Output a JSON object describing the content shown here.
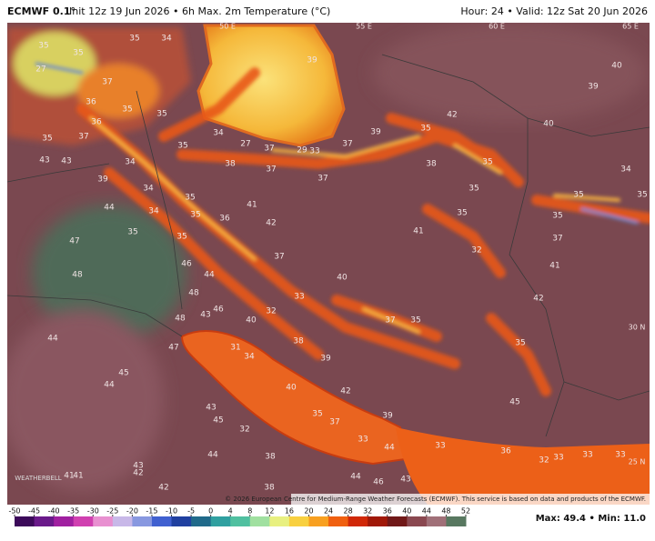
{
  "header": {
    "model": "ECMWF 0.1°",
    "title": "Init 12z 19 Jun 2026 • 6h Max. 2m Temperature (°C)",
    "valid": "Hour: 24 • Valid: 12z Sat 20 Jun 2026"
  },
  "map": {
    "grid_labels": [
      "50 E",
      "55 E",
      "60 E",
      "65 E",
      "30 N",
      "25 N"
    ],
    "temperature_labels": [
      "35",
      "34",
      "35",
      "35",
      "27",
      "37",
      "39",
      "36",
      "35",
      "35",
      "36",
      "35",
      "37",
      "34",
      "35",
      "27",
      "37",
      "29",
      "33",
      "37",
      "39",
      "42",
      "35",
      "40",
      "39",
      "40",
      "43",
      "43",
      "34",
      "38",
      "37",
      "37",
      "38",
      "35",
      "34",
      "39",
      "34",
      "35",
      "41",
      "35",
      "35",
      "35",
      "44",
      "34",
      "35",
      "36",
      "42",
      "35",
      "35",
      "41",
      "32",
      "35",
      "35",
      "37",
      "47",
      "37",
      "46",
      "41",
      "48",
      "44",
      "40",
      "48",
      "33",
      "42",
      "46",
      "43",
      "32",
      "40",
      "48",
      "37",
      "35",
      "44",
      "47",
      "31",
      "38",
      "35",
      "34",
      "39",
      "45",
      "44",
      "40",
      "42",
      "45",
      "43",
      "45",
      "35",
      "37",
      "39",
      "32",
      "33",
      "44",
      "33",
      "36",
      "44",
      "38",
      "33",
      "33",
      "33",
      "32",
      "43",
      "42",
      "41",
      "41",
      "42",
      "38",
      "44",
      "43",
      "46"
    ],
    "logo": "WEATHERBELL",
    "copyright": "© 2026 European Centre for Medium-Range Weather Forecasts (ECMWF). This service is based on data and products of the ECMWF."
  },
  "colorbar": {
    "ticks": [
      -50,
      -45,
      -40,
      -35,
      -30,
      -25,
      -20,
      -15,
      -10,
      -5,
      0,
      4,
      8,
      12,
      16,
      20,
      24,
      28,
      32,
      36,
      40,
      44,
      48,
      52
    ],
    "colors": [
      "#3c0a5a",
      "#6a1a8a",
      "#a020a0",
      "#d040b0",
      "#e890d0",
      "#c8b8e8",
      "#8898e0",
      "#4060d0",
      "#2040a0",
      "#206a8a",
      "#30a0a0",
      "#50c0a0",
      "#a0e0a0",
      "#e8f080",
      "#f8d040",
      "#f8a020",
      "#f06010",
      "#d02808",
      "#a01808",
      "#701818",
      "#8a4850",
      "#a07078",
      "#587860"
    ],
    "max_min": "Max: 49.4 • Min: 11.0"
  }
}
